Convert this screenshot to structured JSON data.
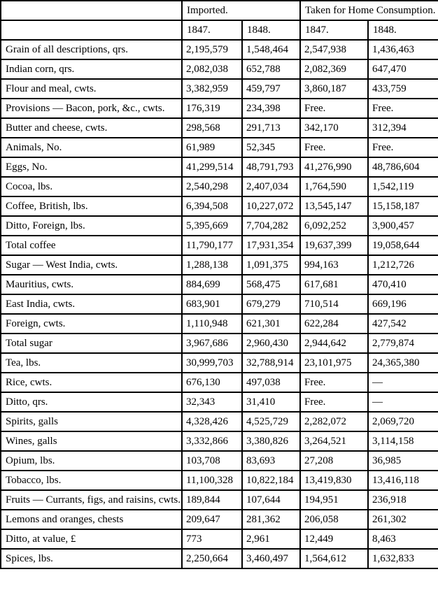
{
  "table": {
    "columns": {
      "corner": "",
      "imported_label": "Imported.",
      "home_label": "Taken for Home Consumption.",
      "year_headers": [
        "1847.",
        "1848.",
        "1847.",
        "1848."
      ]
    },
    "rows": [
      {
        "item": "Grain of all descriptions, qrs.",
        "values": [
          "2,195,579",
          "1,548,464",
          "2,547,938",
          "1,436,463"
        ]
      },
      {
        "item": "Indian corn, qrs.",
        "values": [
          "2,082,038",
          "652,788",
          "2,082,369",
          "647,470"
        ]
      },
      {
        "item": "Flour and meal, cwts.",
        "values": [
          "3,382,959",
          "459,797",
          "3,860,187",
          "433,759"
        ]
      },
      {
        "item": "Provisions — Bacon, pork, &c., cwts.",
        "values": [
          "176,319",
          "234,398",
          "Free.",
          "Free."
        ]
      },
      {
        "item": "Butter and cheese, cwts.",
        "values": [
          "298,568",
          "291,713",
          "342,170",
          "312,394"
        ]
      },
      {
        "item": "Animals, No.",
        "values": [
          "61,989",
          "52,345",
          "Free.",
          "Free."
        ]
      },
      {
        "item": "Eggs, No.",
        "values": [
          "41,299,514",
          "48,791,793",
          "41,276,990",
          "48,786,604"
        ]
      },
      {
        "item": "Cocoa, lbs.",
        "values": [
          "2,540,298",
          "2,407,034",
          "1,764,590",
          "1,542,119"
        ]
      },
      {
        "item": "Coffee, British, lbs.",
        "values": [
          "6,394,508",
          "10,227,072",
          "13,545,147",
          "15,158,187"
        ]
      },
      {
        "item": "Ditto, Foreign, lbs.",
        "values": [
          "5,395,669",
          "7,704,282",
          "6,092,252",
          "3,900,457"
        ]
      },
      {
        "item": "Total coffee",
        "values": [
          "11,790,177",
          "17,931,354",
          "19,637,399",
          "19,058,644"
        ]
      },
      {
        "item": "Sugar — West India, cwts.",
        "values": [
          "1,288,138",
          "1,091,375",
          "994,163",
          "1,212,726"
        ]
      },
      {
        "item": "Mauritius, cwts.",
        "values": [
          "884,699",
          "568,475",
          "617,681",
          "470,410"
        ]
      },
      {
        "item": "East India, cwts.",
        "values": [
          "683,901",
          "679,279",
          "710,514",
          "669,196"
        ]
      },
      {
        "item": "Foreign, cwts.",
        "values": [
          "1,110,948",
          "621,301",
          "622,284",
          "427,542"
        ]
      },
      {
        "item": "Total sugar",
        "values": [
          "3,967,686",
          "2,960,430",
          "2,944,642",
          "2,779,874"
        ]
      },
      {
        "item": "Tea, lbs.",
        "values": [
          "30,999,703",
          "32,788,914",
          "23,101,975",
          "24,365,380"
        ]
      },
      {
        "item": "Rice, cwts.",
        "values": [
          "676,130",
          "497,038",
          "Free.",
          "—"
        ]
      },
      {
        "item": "Ditto, qrs.",
        "values": [
          "32,343",
          "31,410",
          "Free.",
          "—"
        ]
      },
      {
        "item": "Spirits, galls",
        "values": [
          "4,328,426",
          "4,525,729",
          "2,282,072",
          "2,069,720"
        ]
      },
      {
        "item": "Wines, galls",
        "values": [
          "3,332,866",
          "3,380,826",
          "3,264,521",
          "3,114,158"
        ]
      },
      {
        "item": "Opium, lbs.",
        "values": [
          "103,708",
          "83,693",
          "27,208",
          "36,985"
        ]
      },
      {
        "item": "Tobacco, lbs.",
        "values": [
          "11,100,328",
          "10,822,184",
          "13,419,830",
          "13,416,118"
        ]
      },
      {
        "item": "Fruits — Currants, figs, and raisins, cwts.",
        "values": [
          "189,844",
          "107,644",
          "194,951",
          "236,918"
        ]
      },
      {
        "item": "Lemons and oranges, chests",
        "values": [
          "209,647",
          "281,362",
          "206,058",
          "261,302"
        ]
      },
      {
        "item": "Ditto, at value, £",
        "values": [
          "773",
          "2,961",
          "12,449",
          "8,463"
        ]
      },
      {
        "item": "Spices, lbs.",
        "values": [
          "2,250,664",
          "3,460,497",
          "1,564,612",
          "1,632,833"
        ]
      }
    ]
  }
}
